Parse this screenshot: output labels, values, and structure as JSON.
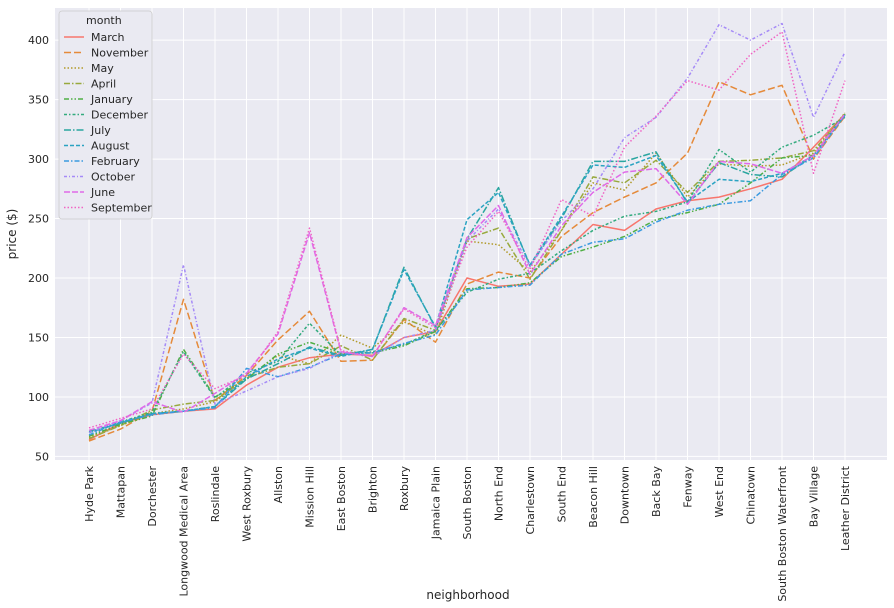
{
  "chart_data": {
    "type": "line",
    "xlabel": "neighborhood",
    "ylabel": "price ($)",
    "ylim": [
      47,
      427
    ],
    "yticks": [
      50,
      100,
      150,
      200,
      250,
      300,
      350,
      400
    ],
    "grid": true,
    "legend_title": "month",
    "legend_position": "top-left",
    "categories": [
      "Hyde Park",
      "Mattapan",
      "Dorchester",
      "Longwood Medical Area",
      "Roslindale",
      "West Roxbury",
      "Allston",
      "Mission Hill",
      "East Boston",
      "Brighton",
      "Roxbury",
      "Jamaica Plain",
      "South Boston",
      "North End",
      "Charlestown",
      "South End",
      "Beacon Hill",
      "Downtown",
      "Back Bay",
      "Fenway",
      "West End",
      "Chinatown",
      "South Boston Waterfront",
      "Bay Village",
      "Leather District"
    ],
    "series": [
      {
        "name": "March",
        "color": "#f8766d",
        "dash": "",
        "values": [
          64,
          78,
          85,
          88,
          90,
          110,
          125,
          133,
          136,
          135,
          150,
          155,
          200,
          193,
          195,
          220,
          245,
          240,
          258,
          265,
          268,
          275,
          283,
          310,
          338
        ]
      },
      {
        "name": "November",
        "color": "#e58a3a",
        "dash": "7,3",
        "values": [
          63,
          73,
          88,
          182,
          97,
          118,
          148,
          172,
          130,
          131,
          165,
          146,
          195,
          205,
          200,
          235,
          255,
          268,
          280,
          305,
          365,
          354,
          362,
          300,
          336
        ]
      },
      {
        "name": "May",
        "color": "#b19a2a",
        "dash": "1.5,2",
        "values": [
          66,
          76,
          86,
          90,
          96,
          115,
          135,
          128,
          152,
          141,
          163,
          152,
          231,
          228,
          205,
          240,
          280,
          274,
          305,
          268,
          296,
          294,
          295,
          305,
          339
        ]
      },
      {
        "name": "April",
        "color": "#98a93d",
        "dash": "6,2,1.5,2",
        "values": [
          65,
          76,
          89,
          94,
          97,
          116,
          125,
          128,
          143,
          131,
          166,
          156,
          233,
          242,
          199,
          240,
          285,
          280,
          299,
          272,
          298,
          299,
          301,
          307,
          338
        ]
      },
      {
        "name": "January",
        "color": "#4faf44",
        "dash": "5,2,1.5,2,1.5,2",
        "values": [
          67,
          77,
          84,
          140,
          100,
          115,
          136,
          146,
          137,
          137,
          143,
          155,
          191,
          192,
          196,
          218,
          226,
          235,
          249,
          255,
          262,
          280,
          301,
          303,
          338
        ]
      },
      {
        "name": "December",
        "color": "#33ab7e",
        "dash": "3,2,1.5,2",
        "values": [
          70,
          79,
          87,
          138,
          99,
          120,
          130,
          162,
          135,
          138,
          144,
          156,
          188,
          199,
          204,
          223,
          240,
          252,
          256,
          264,
          308,
          289,
          310,
          320,
          335
        ]
      },
      {
        "name": "July",
        "color": "#2aa6a0",
        "dash": "7,2,1.5,2",
        "values": [
          71,
          78,
          86,
          88,
          92,
          115,
          128,
          142,
          135,
          140,
          209,
          158,
          233,
          276,
          210,
          250,
          298,
          298,
          306,
          263,
          297,
          287,
          285,
          303,
          337
        ]
      },
      {
        "name": "August",
        "color": "#2aa3c2",
        "dash": "4,2",
        "values": [
          70,
          78,
          86,
          88,
          92,
          117,
          132,
          141,
          134,
          140,
          207,
          159,
          249,
          272,
          211,
          252,
          295,
          293,
          303,
          264,
          283,
          281,
          288,
          303,
          337
        ]
      },
      {
        "name": "February",
        "color": "#3a9ae0",
        "dash": "5,2,1.5,2",
        "values": [
          68,
          79,
          85,
          88,
          91,
          124,
          117,
          125,
          136,
          137,
          145,
          152,
          190,
          192,
          194,
          220,
          230,
          233,
          247,
          257,
          262,
          265,
          287,
          301,
          337
        ]
      },
      {
        "name": "October",
        "color": "#a58af7",
        "dash": "3,2,1,2",
        "values": [
          70,
          80,
          95,
          211,
          94,
          105,
          117,
          124,
          138,
          134,
          150,
          156,
          231,
          258,
          210,
          248,
          275,
          318,
          335,
          368,
          413,
          400,
          414,
          335,
          390
        ]
      },
      {
        "name": "June",
        "color": "#e06ae8",
        "dash": "6,2",
        "values": [
          72,
          80,
          96,
          87,
          103,
          120,
          153,
          238,
          138,
          134,
          175,
          160,
          234,
          261,
          203,
          244,
          272,
          289,
          292,
          262,
          298,
          296,
          288,
          303,
          338
        ]
      },
      {
        "name": "September",
        "color": "#f064c4",
        "dash": "1.5,2",
        "values": [
          74,
          82,
          90,
          136,
          107,
          118,
          155,
          242,
          139,
          134,
          174,
          158,
          226,
          256,
          207,
          266,
          252,
          310,
          336,
          366,
          358,
          388,
          407,
          288,
          366
        ]
      }
    ]
  }
}
